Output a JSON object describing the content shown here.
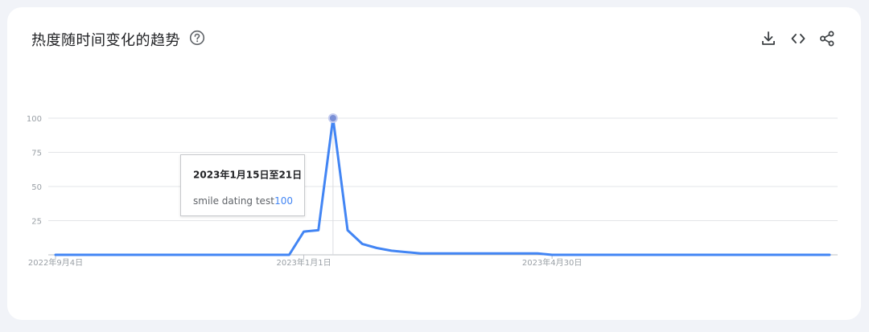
{
  "header": {
    "title": "热度随时间变化的趋势",
    "help_icon": "help-circle-icon",
    "tools": [
      {
        "name": "download-icon"
      },
      {
        "name": "embed-code-icon"
      },
      {
        "name": "share-icon"
      }
    ]
  },
  "colors": {
    "line": "#4285f4",
    "grid": "#e3e5e8",
    "axis_label": "#9aa0a6"
  },
  "tooltip": {
    "date": "2023年1月15日至21日",
    "term": "smile dating test",
    "value": "100"
  },
  "chart_data": {
    "type": "line",
    "title": "",
    "xlabel": "",
    "ylabel": "",
    "ylim": [
      0,
      100
    ],
    "yticks": [
      25,
      50,
      75,
      100
    ],
    "grid": true,
    "x_tick_labels": [
      "2022年9月4日",
      "2023年1月1日",
      "2023年4月30日"
    ],
    "x_tick_index": [
      0,
      17,
      34
    ],
    "series": [
      {
        "name": "smile dating test",
        "values": [
          0,
          0,
          0,
          0,
          0,
          0,
          0,
          0,
          0,
          0,
          0,
          0,
          0,
          0,
          0,
          0,
          0,
          17,
          18,
          100,
          18,
          8,
          5,
          3,
          2,
          1,
          1,
          1,
          1,
          1,
          1,
          1,
          1,
          1,
          0,
          0,
          0,
          0,
          0,
          0,
          0,
          0,
          0,
          0,
          0,
          0,
          0,
          0,
          0,
          0,
          0,
          0,
          0,
          0
        ]
      }
    ],
    "highlight_index": 19
  }
}
